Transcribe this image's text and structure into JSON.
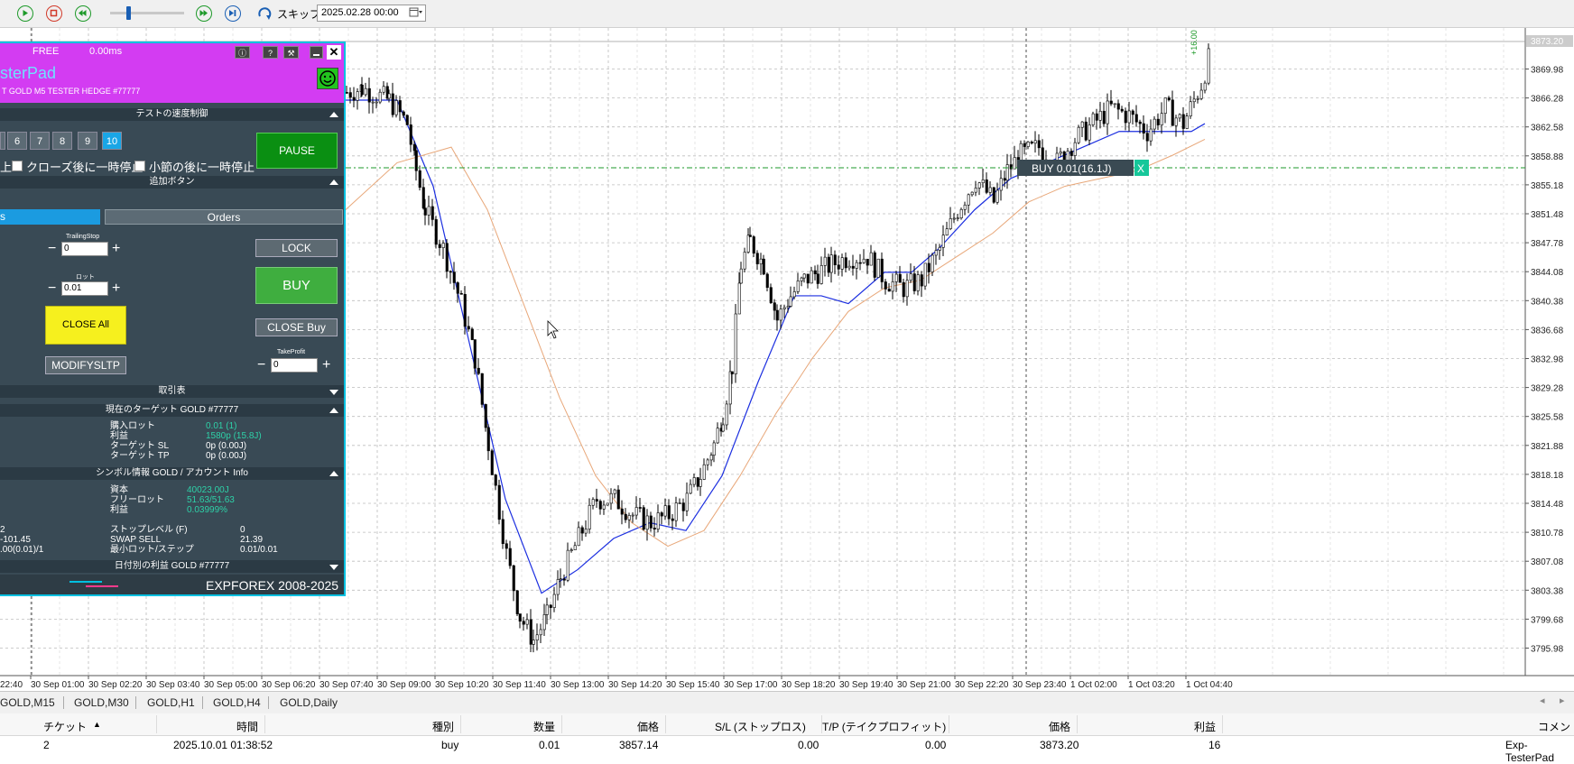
{
  "toolbar": {
    "skip_label": "スキップ",
    "date_value": "2025.02.28 00:00",
    "icons": [
      "play-icon",
      "stop-icon",
      "rewind-icon",
      "fast-forward-icon",
      "step-end-icon",
      "skip-icon",
      "calendar-icon"
    ]
  },
  "chart": {
    "symbol": "GOLD",
    "timeframe": "M5",
    "current_price_label": "3873.20",
    "price_ticks": [
      "3869.98",
      "3866.28",
      "3862.58",
      "3858.88",
      "3855.18",
      "3851.48",
      "3847.78",
      "3844.08",
      "3840.38",
      "3836.68",
      "3832.98",
      "3829.28",
      "3825.58",
      "3821.88",
      "3818.18",
      "3814.48",
      "3810.78",
      "3807.08",
      "3803.38",
      "3799.68",
      "3795.98"
    ],
    "time_ticks": [
      "22:40",
      "30 Sep 01:00",
      "30 Sep 02:20",
      "30 Sep 03:40",
      "30 Sep 05:00",
      "30 Sep 06:20",
      "30 Sep 07:40",
      "30 Sep 09:00",
      "30 Sep 10:20",
      "30 Sep 11:40",
      "30 Sep 13:00",
      "30 Sep 14:20",
      "30 Sep 15:40",
      "30 Sep 17:00",
      "30 Sep 18:20",
      "30 Sep 19:40",
      "30 Sep 21:00",
      "30 Sep 22:20",
      "30 Sep 23:40",
      "1 Oct 02:00",
      "1 Oct 03:20",
      "1 Oct 04:40"
    ],
    "position_label": "BUY 0.01(16.1J)",
    "position_close": "X",
    "vertical_text": "+16.00",
    "colors": {
      "fast_ma": "#1c2fe0",
      "slow_ma": "#e8a779",
      "position_line": "#1e9a2a",
      "position_bg": "#3a4a53",
      "close_bg": "#16c79a"
    }
  },
  "panel": {
    "status": "FREE",
    "latency": "0.00ms",
    "title": "sterPad",
    "subtitle": "T GOLD M5 TESTER HEDGE  #77777",
    "sections": {
      "speed": "テストの速度制御",
      "extra": "追加ボタン",
      "trades": "取引表",
      "target": "現在のターゲット GOLD  #77777",
      "symbol_info": "シンボル情報 GOLD / アカウント Info",
      "daily": "日付別の利益 GOLD  #77777"
    },
    "speed_buttons": [
      "6",
      "7",
      "8",
      "9",
      "10"
    ],
    "active_speed": "10",
    "pause_label": "PAUSE",
    "checkbox_prefix": "上",
    "checkbox_close": "クローズ後に一時停止",
    "checkbox_bar": "小節の後に一時停止",
    "tabs": {
      "left": "s",
      "right": "Orders"
    },
    "trailing_label": "TrailingStop",
    "trailing_value": "0",
    "lot_label": "ロット",
    "lot_value": "0.01",
    "takeprofit_label": "TakeProfit",
    "takeprofit_value": "0",
    "lock_label": "LOCK",
    "buy_label": "BUY",
    "close_all_label": "CLOSE All",
    "close_buy_label": "CLOSE Buy",
    "modify_label": "MODIFYSLTP",
    "target_info": [
      {
        "k": "購入ロット",
        "v": "0.01 (1)"
      },
      {
        "k": "利益",
        "v": "1580p (15.8J)"
      },
      {
        "k": "ターゲット SL",
        "v": "0p (0.00J)"
      },
      {
        "k": "ターゲット TP",
        "v": "0p (0.00J)"
      }
    ],
    "account_info": [
      {
        "k": "資本",
        "v": "40023.00J"
      },
      {
        "k": "フリーロット",
        "v": "51.63/51.63"
      },
      {
        "k": "利益",
        "v": "0.03999%"
      }
    ],
    "symbol_left": [
      "2",
      "-101.45",
      ".00(0.01)/1"
    ],
    "symbol_info": [
      {
        "k": "ストップレベル (F)",
        "v": "0"
      },
      {
        "k": "SWAP SELL",
        "v": "21.39"
      },
      {
        "k": "最小ロット/ステップ",
        "v": "0.01/0.01"
      }
    ],
    "footer": "EXPFOREX 2008-2025"
  },
  "bottom_tabs": [
    "GOLD,M15",
    "GOLD,M30",
    "GOLD,H1",
    "GOLD,H4",
    "GOLD,Daily"
  ],
  "table": {
    "headers": [
      "チケット",
      "時間",
      "種別",
      "数量",
      "価格",
      "S/L (ストップロス)",
      "T/P (テイクプロフィット)",
      "価格",
      "利益",
      "コメント"
    ],
    "row": [
      "2",
      "2025.10.01 01:38:52",
      "buy",
      "0.01",
      "3857.14",
      "0.00",
      "0.00",
      "3873.20",
      "16",
      "Exp-TesterPad"
    ]
  }
}
